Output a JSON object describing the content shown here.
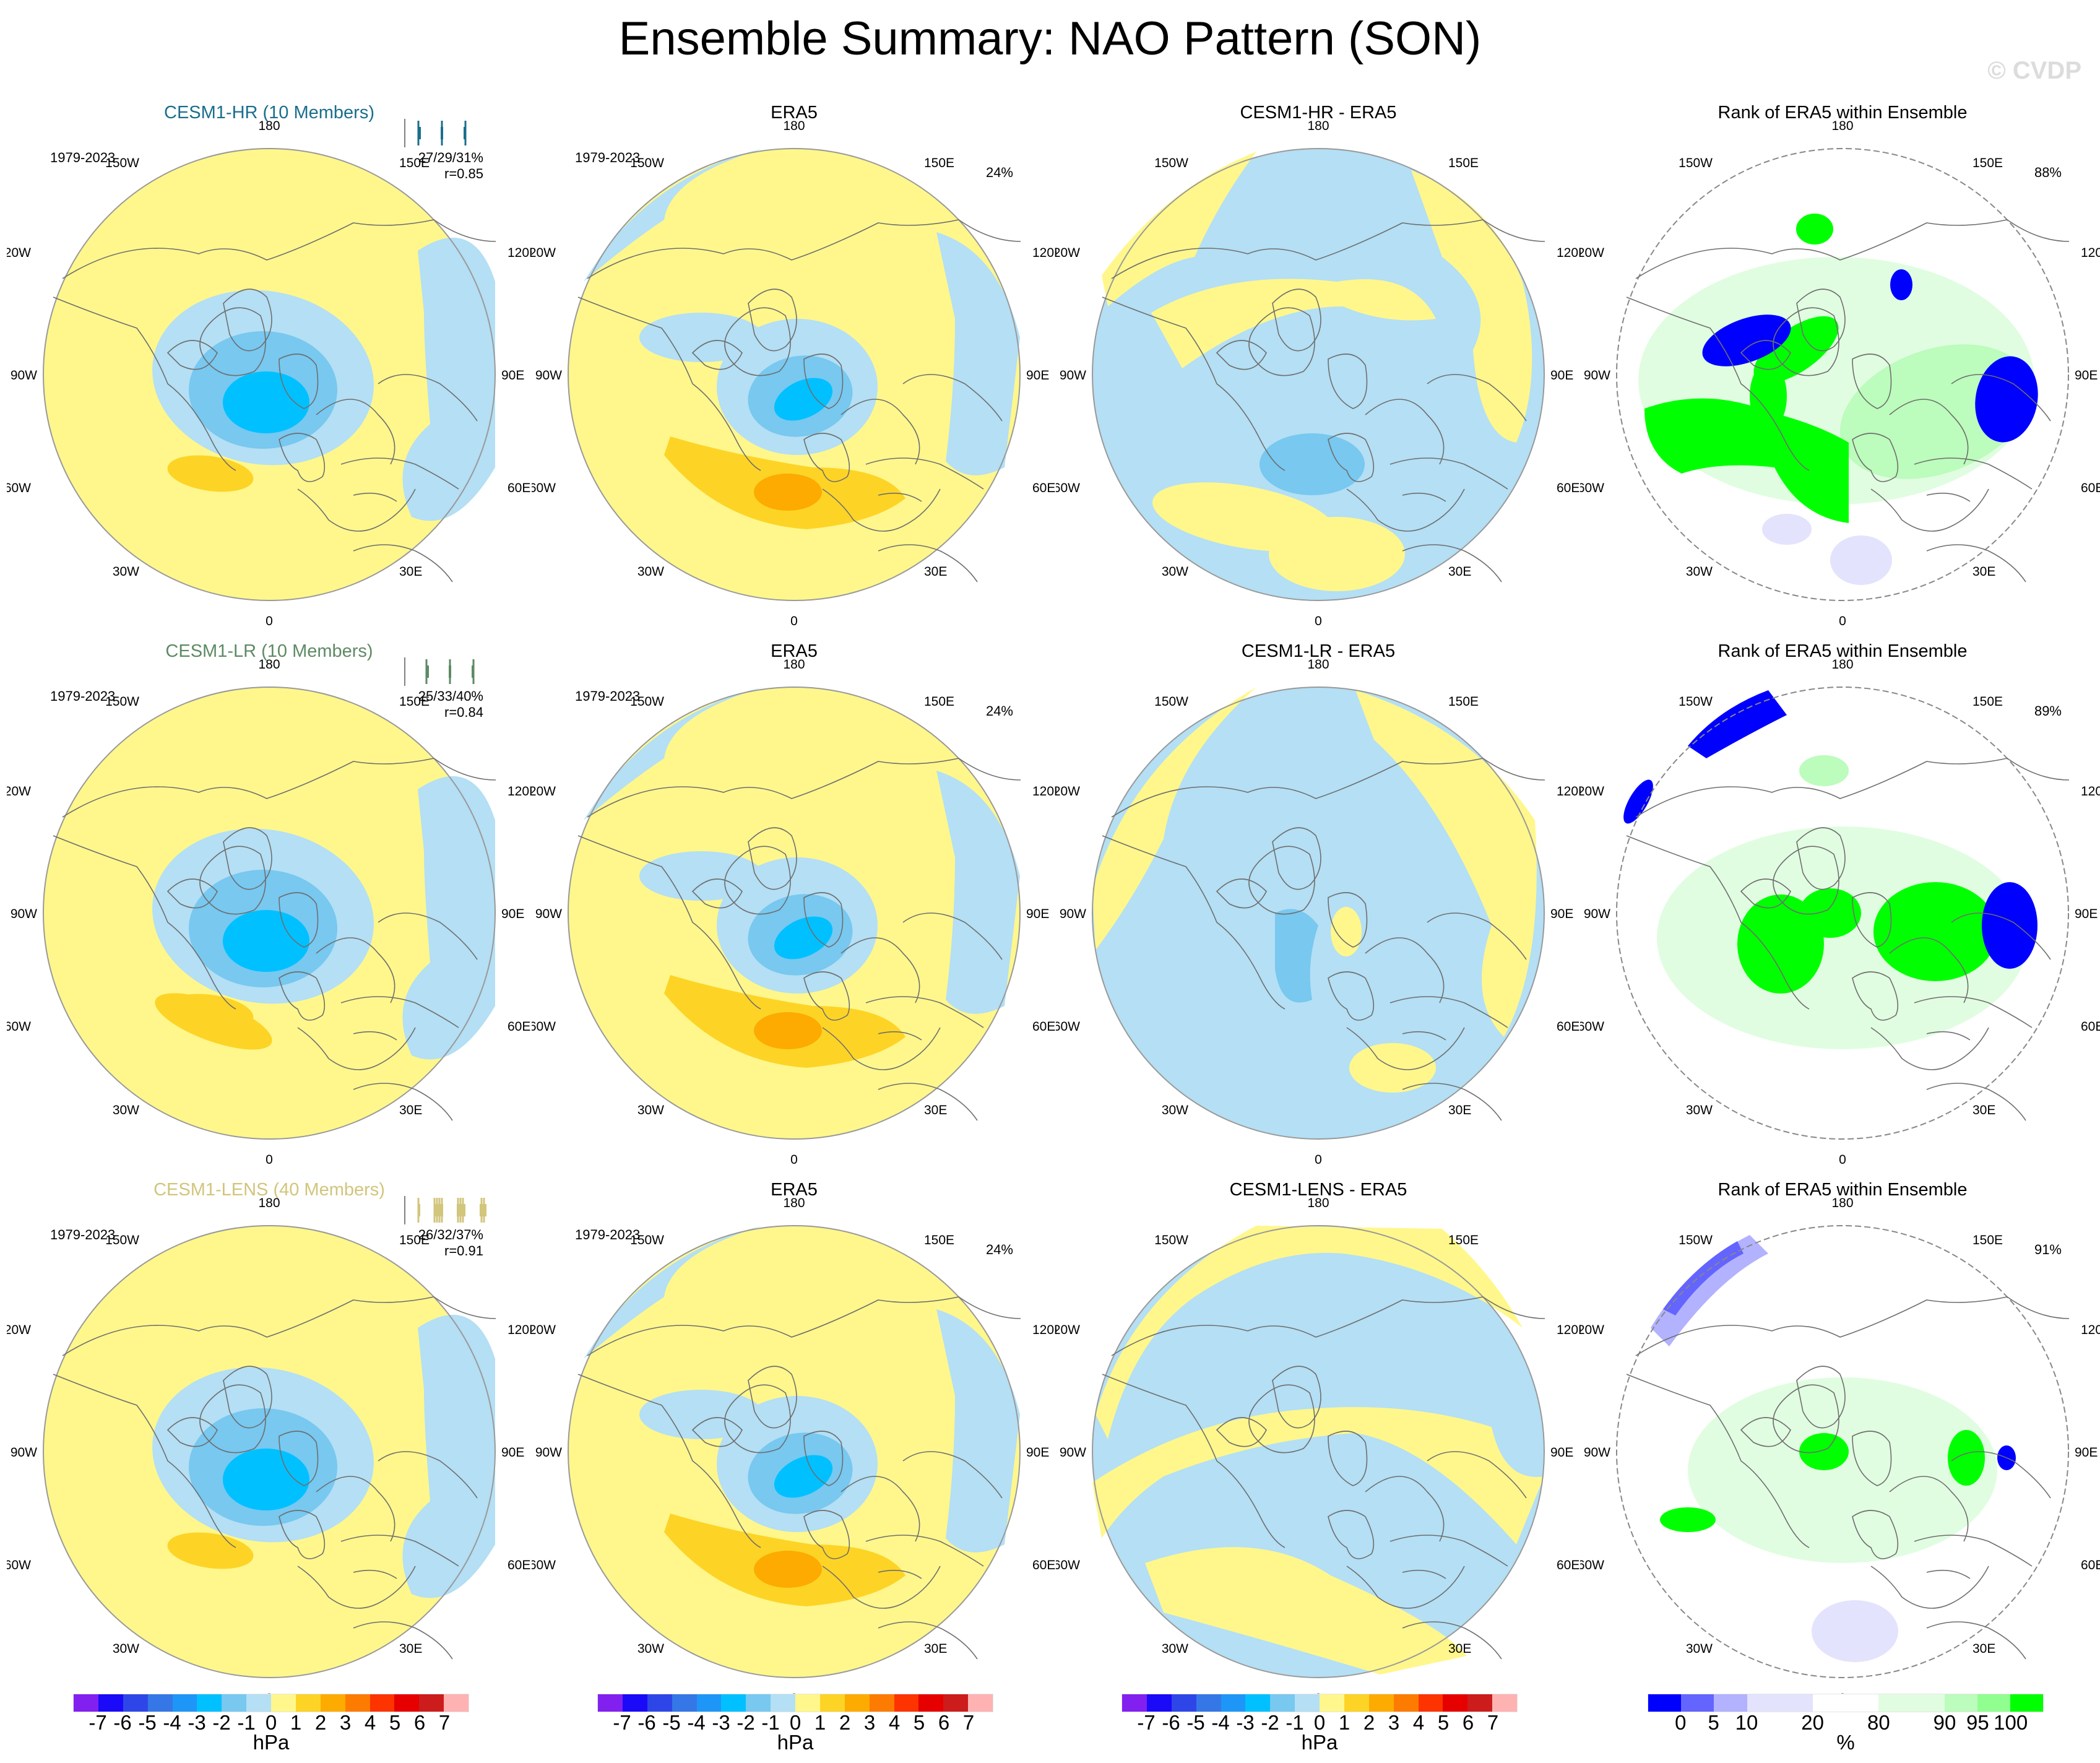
{
  "title": "Ensemble Summary: NAO Pattern (SON)",
  "watermark": "© CVDP",
  "period": "1979-2023",
  "lon_labels": [
    "180",
    "150W",
    "150E",
    "120W",
    "120E",
    "90W",
    "90E",
    "60W",
    "60E",
    "30W",
    "30E",
    "0"
  ],
  "rows": [
    {
      "ensemble": {
        "title": "CESM1-HR (10 Members)",
        "color": "#1a6e8c",
        "pct": "27/29/31%",
        "r": "r=0.85",
        "members": 10
      },
      "era5": {
        "title": "ERA5",
        "pct": "24%"
      },
      "diff": {
        "title": "CESM1-HR - ERA5"
      },
      "rank": {
        "title": "Rank of ERA5 within Ensemble",
        "pct": "88%"
      }
    },
    {
      "ensemble": {
        "title": "CESM1-LR (10 Members)",
        "color": "#5e8a64",
        "pct": "25/33/40%",
        "r": "r=0.84",
        "members": 10
      },
      "era5": {
        "title": "ERA5",
        "pct": "24%"
      },
      "diff": {
        "title": "CESM1-LR - ERA5"
      },
      "rank": {
        "title": "Rank of ERA5 within Ensemble",
        "pct": "89%"
      }
    },
    {
      "ensemble": {
        "title": "CESM1-LENS (40 Members)",
        "color": "#d2c57c",
        "pct": "26/32/37%",
        "r": "r=0.91",
        "members": 40
      },
      "era5": {
        "title": "ERA5",
        "pct": "24%"
      },
      "diff": {
        "title": "CESM1-LENS - ERA5"
      },
      "rank": {
        "title": "Rank of ERA5 within Ensemble",
        "pct": "91%"
      }
    }
  ],
  "colorbars": {
    "hpa": {
      "unit": "hPa",
      "ticks": [
        "-7",
        "-6",
        "-5",
        "-4",
        "-3",
        "-2",
        "-1",
        "0",
        "1",
        "2",
        "3",
        "4",
        "5",
        "6",
        "7"
      ],
      "colors": [
        "#8220f0",
        "#1a0af7",
        "#2e46e8",
        "#3677e8",
        "#1e96f8",
        "#00c0ff",
        "#78c8f0",
        "#b4dff4",
        "#fff78c",
        "#fdd426",
        "#fdab00",
        "#fd7b00",
        "#fd3300",
        "#e60000",
        "#cd1c1c",
        "#ffb2b2"
      ]
    },
    "rank": {
      "unit": "%",
      "ticks": [
        "0",
        "5",
        "10",
        "20",
        "80",
        "90",
        "95",
        "100"
      ],
      "colors": [
        "#0000ff",
        "#6464ff",
        "#b2b2ff",
        "#e3e3fd",
        "#ffffff",
        "#e1fde1",
        "#bcfcbc",
        "#90ff90",
        "#00ff00"
      ],
      "widths": [
        1,
        1,
        1,
        2,
        2,
        2,
        1,
        1,
        1
      ]
    }
  },
  "chart_data": {
    "type": "heatmap",
    "title": "Ensemble Summary: NAO Pattern (SON)",
    "projection": "north polar stereographic",
    "variable": "sea level pressure NAO pattern",
    "units_pattern": "hPa",
    "units_rank": "%",
    "pattern_levels": [
      -7,
      -6,
      -5,
      -4,
      -3,
      -2,
      -1,
      0,
      1,
      2,
      3,
      4,
      5,
      6,
      7
    ],
    "rank_levels": [
      0,
      5,
      10,
      20,
      80,
      90,
      95,
      100
    ],
    "panels": [
      {
        "row": 1,
        "col": 1,
        "title": "CESM1-HR (10 Members)",
        "period": "1979-2023",
        "pct_variance": "27/29/31%",
        "pattern_corr": 0.85,
        "min_center": "-3 to -2 hPa near Iceland",
        "max_center": "1 to 2 hPa Azores"
      },
      {
        "row": 1,
        "col": 2,
        "title": "ERA5",
        "period": "1979-2023",
        "pct_variance": "24%",
        "min_center": "-3 to -2 hPa near Iceland",
        "max_center": "2 to 3 hPa NE Atlantic"
      },
      {
        "row": 1,
        "col": 3,
        "title": "CESM1-HR - ERA5",
        "min_center": "-2 to -1 hPa over N Europe"
      },
      {
        "row": 1,
        "col": 4,
        "title": "Rank of ERA5 within Ensemble",
        "pct_area": "88%"
      },
      {
        "row": 2,
        "col": 1,
        "title": "CESM1-LR (10 Members)",
        "period": "1979-2023",
        "pct_variance": "25/33/40%",
        "pattern_corr": 0.84,
        "min_center": "-3 to -2 hPa near Iceland",
        "max_center": "1 to 2 hPa mid-Atlantic"
      },
      {
        "row": 2,
        "col": 2,
        "title": "ERA5",
        "period": "1979-2023",
        "pct_variance": "24%"
      },
      {
        "row": 2,
        "col": 3,
        "title": "CESM1-LR - ERA5",
        "min_center": "-2 to -1 hPa Greenland"
      },
      {
        "row": 2,
        "col": 4,
        "title": "Rank of ERA5 within Ensemble",
        "pct_area": "89%"
      },
      {
        "row": 3,
        "col": 1,
        "title": "CESM1-LENS (40 Members)",
        "period": "1979-2023",
        "pct_variance": "26/32/37%",
        "pattern_corr": 0.91,
        "min_center": "-3 to -2 hPa near Iceland",
        "max_center": "1 to 2 hPa Azores"
      },
      {
        "row": 3,
        "col": 2,
        "title": "ERA5",
        "period": "1979-2023",
        "pct_variance": "24%"
      },
      {
        "row": 3,
        "col": 3,
        "title": "CESM1-LENS - ERA5",
        "range": "-1 to 1 hPa"
      },
      {
        "row": 3,
        "col": 4,
        "title": "Rank of ERA5 within Ensemble",
        "pct_area": "91%"
      }
    ]
  }
}
